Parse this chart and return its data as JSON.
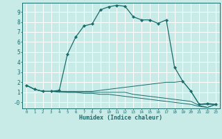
{
  "xlabel": "Humidex (Indice chaleur)",
  "bg_color": "#c8ebe8",
  "grid_color": "#ffffff",
  "line_color": "#1a6b6b",
  "xlim": [
    -0.5,
    23.5
  ],
  "ylim": [
    -0.6,
    9.9
  ],
  "xticks": [
    0,
    1,
    2,
    3,
    4,
    5,
    6,
    7,
    8,
    9,
    10,
    11,
    12,
    13,
    14,
    15,
    16,
    17,
    18,
    19,
    20,
    21,
    22,
    23
  ],
  "yticks": [
    0,
    1,
    2,
    3,
    4,
    5,
    6,
    7,
    8,
    9
  ],
  "ytick_labels": [
    "-0",
    "1",
    "2",
    "3",
    "4",
    "5",
    "6",
    "7",
    "8",
    "9"
  ],
  "line1_x": [
    0,
    1,
    2,
    3,
    4,
    5,
    6,
    7,
    8,
    9,
    10,
    11,
    12,
    13,
    14,
    15,
    16,
    17,
    18,
    19,
    20,
    21,
    22,
    23
  ],
  "line1_y": [
    1.7,
    1.3,
    1.1,
    1.1,
    1.2,
    4.8,
    6.5,
    7.6,
    7.8,
    9.2,
    9.5,
    9.65,
    9.55,
    8.5,
    8.2,
    8.2,
    7.85,
    8.2,
    3.5,
    2.1,
    1.1,
    -0.2,
    -0.1,
    -0.2
  ],
  "line2_x": [
    0,
    1,
    2,
    3,
    4,
    5,
    6,
    7,
    8,
    9,
    10,
    11,
    12,
    13,
    14,
    15,
    16,
    17,
    18,
    19,
    20,
    21,
    22,
    23
  ],
  "line2_y": [
    1.7,
    1.3,
    1.1,
    1.1,
    1.1,
    1.1,
    1.1,
    1.1,
    1.1,
    1.2,
    1.3,
    1.4,
    1.5,
    1.6,
    1.7,
    1.8,
    1.9,
    2.0,
    2.0,
    2.1,
    1.1,
    -0.2,
    -0.2,
    -0.2
  ],
  "line3_x": [
    0,
    1,
    2,
    3,
    4,
    5,
    6,
    7,
    8,
    9,
    10,
    11,
    12,
    13,
    14,
    15,
    16,
    17,
    18,
    19,
    20,
    21,
    22,
    23
  ],
  "line3_y": [
    1.7,
    1.3,
    1.1,
    1.1,
    1.1,
    1.0,
    1.0,
    1.0,
    1.0,
    1.0,
    1.0,
    1.0,
    1.0,
    0.8,
    0.7,
    0.6,
    0.5,
    0.4,
    0.3,
    0.2,
    0.1,
    -0.3,
    -0.5,
    -0.2
  ],
  "line4_x": [
    0,
    1,
    2,
    3,
    4,
    5,
    6,
    7,
    8,
    9,
    10,
    11,
    12,
    13,
    14,
    15,
    16,
    17,
    18,
    19,
    20,
    21,
    22,
    23
  ],
  "line4_y": [
    1.7,
    1.3,
    1.1,
    1.1,
    1.0,
    1.0,
    1.0,
    0.9,
    0.9,
    0.8,
    0.8,
    0.7,
    0.6,
    0.5,
    0.4,
    0.3,
    0.2,
    0.1,
    0.0,
    -0.1,
    -0.2,
    -0.4,
    -0.5,
    -0.2
  ]
}
